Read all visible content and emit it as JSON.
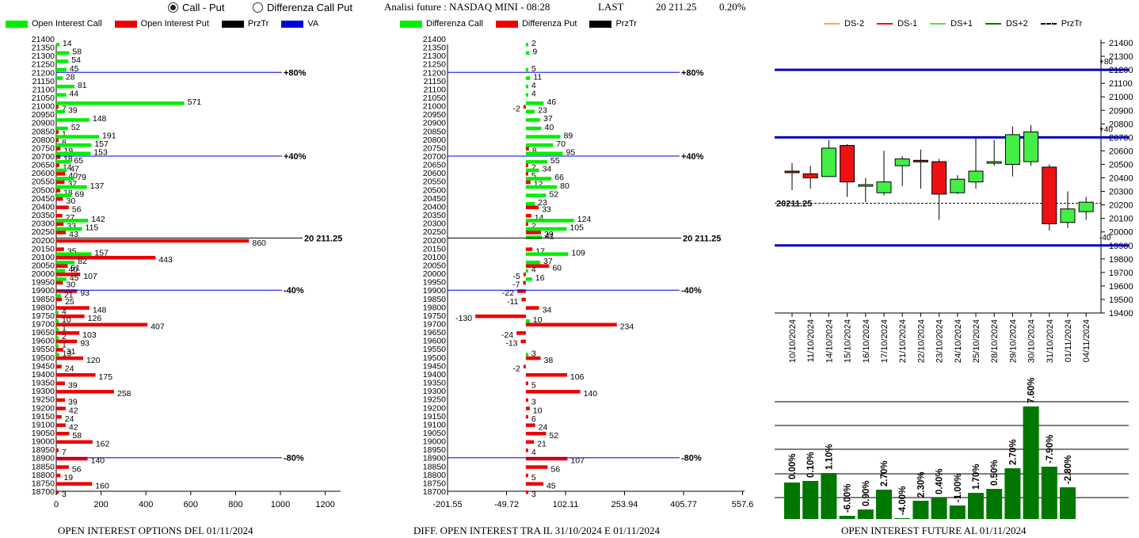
{
  "header": {
    "radio_call_put": "Call - Put",
    "radio_diff": "Differenza Call Put",
    "selected": "call_put",
    "title": "Analisi future : NASDAQ MINI - 08:28",
    "last_label": "LAST",
    "last_value": "20 211.25",
    "last_pct": "0.20%"
  },
  "footers": {
    "left": "OPEN INTEREST OPTIONS DEL 01/11/2024",
    "middle": "DIFF. OPEN INTEREST TRA IL 31/10/2024 E 01/11/2024",
    "right": "OPEN INTEREST FUTURE AL 01/11/2024"
  },
  "colors": {
    "call": "#00ee00",
    "put": "#ee0000",
    "va": "#0000dd",
    "przTr": "#000000",
    "navy": "#0000bb",
    "dark_green": "#007700",
    "light_green": "#44ee44",
    "red": "#ee1111"
  },
  "chart_data": [
    {
      "type": "bar",
      "orientation": "horizontal",
      "legend": [
        "Open Interest Call",
        "Open Interest Put",
        "PrzTr",
        "VA"
      ],
      "strikes": [
        21400,
        21350,
        21300,
        21250,
        21200,
        21150,
        21100,
        21050,
        21000,
        20950,
        20900,
        20850,
        20800,
        20750,
        20700,
        20650,
        20600,
        20550,
        20500,
        20450,
        20400,
        20350,
        20300,
        20250,
        20200,
        20150,
        20100,
        20050,
        20000,
        19950,
        19900,
        19850,
        19800,
        19750,
        19700,
        19650,
        19600,
        19550,
        19500,
        19450,
        19400,
        19350,
        19300,
        19250,
        19200,
        19150,
        19100,
        19050,
        19000,
        18950,
        18900,
        18850,
        18800,
        18750,
        18700
      ],
      "call": [
        0,
        14,
        58,
        54,
        45,
        28,
        81,
        44,
        571,
        39,
        148,
        52,
        191,
        157,
        153,
        65,
        47,
        79,
        137,
        69,
        0,
        0,
        142,
        115,
        0,
        0,
        157,
        82,
        40,
        45,
        0,
        21,
        0,
        4,
        10,
        1,
        2,
        1,
        13,
        0,
        0,
        0,
        0,
        0,
        0,
        0,
        0,
        0,
        0,
        0,
        0,
        0,
        0,
        0,
        0
      ],
      "put": [
        0,
        0,
        0,
        0,
        0,
        0,
        0,
        0,
        7,
        0,
        0,
        1,
        8,
        19,
        18,
        14,
        40,
        37,
        18,
        30,
        56,
        27,
        33,
        43,
        860,
        35,
        443,
        51,
        107,
        30,
        93,
        25,
        148,
        126,
        407,
        103,
        93,
        31,
        120,
        24,
        175,
        39,
        258,
        39,
        42,
        24,
        42,
        58,
        162,
        7,
        140,
        56,
        19,
        160,
        3
      ],
      "x_ticks": [
        0,
        200,
        400,
        600,
        800,
        1000,
        1200
      ],
      "xlim": [
        0,
        1200
      ],
      "price_line": {
        "value": 20211.25,
        "label": "20 211.25"
      },
      "va_lines": [
        {
          "strike": 21200,
          "label": "+80%"
        },
        {
          "strike": 20700,
          "label": "+40%"
        },
        {
          "strike": 19900,
          "label": "-40%"
        },
        {
          "strike": 18900,
          "label": "-80%"
        }
      ]
    },
    {
      "type": "bar",
      "orientation": "horizontal",
      "legend": [
        "Differenza Call",
        "Differenza Put",
        "PrzTr"
      ],
      "strikes": [
        21400,
        21350,
        21300,
        21250,
        21200,
        21150,
        21100,
        21050,
        21000,
        20950,
        20900,
        20850,
        20800,
        20750,
        20700,
        20650,
        20600,
        20550,
        20500,
        20450,
        20400,
        20350,
        20300,
        20250,
        20200,
        20150,
        20100,
        20050,
        20000,
        19950,
        19900,
        19850,
        19800,
        19750,
        19700,
        19650,
        19600,
        19550,
        19500,
        19450,
        19400,
        19350,
        19300,
        19250,
        19200,
        19150,
        19100,
        19050,
        19000,
        18950,
        18900,
        18850,
        18800,
        18750,
        18700
      ],
      "call": [
        0,
        2,
        9,
        0,
        5,
        11,
        4,
        4,
        46,
        23,
        37,
        40,
        89,
        70,
        95,
        55,
        34,
        66,
        80,
        52,
        23,
        0,
        124,
        105,
        41,
        0,
        109,
        37,
        4,
        16,
        0,
        0,
        0,
        0,
        10,
        0,
        0,
        0,
        3,
        0,
        0,
        0,
        0,
        0,
        0,
        0,
        0,
        0,
        0,
        0,
        0,
        0,
        0,
        0,
        0
      ],
      "put": [
        0,
        0,
        0,
        0,
        0,
        0,
        0,
        0,
        -2,
        0,
        0,
        0,
        0,
        8,
        0,
        2,
        5,
        12,
        0,
        0,
        33,
        14,
        2,
        39,
        0,
        17,
        0,
        60,
        -5,
        -7,
        -22,
        -11,
        34,
        -130,
        234,
        -24,
        -13,
        0,
        38,
        -2,
        106,
        5,
        140,
        3,
        10,
        6,
        24,
        52,
        21,
        4,
        107,
        56,
        5,
        45,
        3
      ],
      "x_ticks": [
        -201.55,
        -49.72,
        102.11,
        253.94,
        405.77,
        557.6
      ],
      "xlim": [
        -201.55,
        557.6
      ],
      "price_line": {
        "value": 20211.25,
        "label": "20 211.25"
      },
      "va_lines": [
        {
          "strike": 21200,
          "label": "+80%"
        },
        {
          "strike": 20700,
          "label": "+40%"
        },
        {
          "strike": 19900,
          "label": "-40%"
        },
        {
          "strike": 18900,
          "label": "-80%"
        }
      ]
    },
    {
      "type": "candlestick",
      "legend": [
        "DS-2",
        "DS-1",
        "DS+1",
        "DS+2",
        "PrzTr"
      ],
      "dates": [
        "10/10/2024",
        "11/10/2024",
        "14/10/2024",
        "15/10/2024",
        "16/10/2024",
        "17/10/2024",
        "21/10/2024",
        "22/10/2024",
        "23/10/2024",
        "24/10/2024",
        "25/10/2024",
        "28/10/2024",
        "29/10/2024",
        "30/10/2024",
        "31/10/2024",
        "01/11/2024",
        "04/11/2024"
      ],
      "open": [
        20450,
        20430,
        20410,
        20640,
        20350,
        20290,
        20490,
        20530,
        20520,
        20290,
        20370,
        20510,
        20500,
        20520,
        20480,
        20070,
        20150
      ],
      "close": [
        20440,
        20400,
        20620,
        20370,
        20350,
        20370,
        20540,
        20520,
        20280,
        20390,
        20450,
        20520,
        20720,
        20740,
        20060,
        20170,
        20220
      ],
      "high": [
        20510,
        20490,
        20680,
        20650,
        20400,
        20600,
        20560,
        20610,
        20540,
        20420,
        20710,
        20680,
        20780,
        20790,
        20500,
        20300,
        20260
      ],
      "low": [
        20310,
        20320,
        20410,
        20260,
        20220,
        20270,
        20340,
        20320,
        20090,
        20280,
        20320,
        20490,
        20410,
        20490,
        20010,
        20030,
        20090
      ],
      "y_ticks": [
        19400,
        19500,
        19600,
        19700,
        19800,
        19900,
        20000,
        20100,
        20200,
        20300,
        20400,
        20500,
        20600,
        20700,
        20800,
        20900,
        21000,
        21100,
        21200,
        21300,
        21400
      ],
      "ylim": [
        19400,
        21400
      ],
      "levels": [
        {
          "value": 21200,
          "label": "+80"
        },
        {
          "value": 20700,
          "label": "+40"
        },
        {
          "value": 19900,
          "label": "-40"
        }
      ],
      "price_line": {
        "value": 20211.25,
        "label": "20211.25"
      }
    },
    {
      "type": "bar",
      "labels": [
        "0.00%",
        "0.10%",
        "1.10%",
        "-6.00%",
        "0.90%",
        "2.70%",
        "-4.00%",
        "2.30%",
        "0.40%",
        "-1.00%",
        "1.70%",
        "0.50%",
        "2.70%",
        "7.60%",
        "-7.90%",
        "-2.80%"
      ],
      "values": [
        0.0,
        0.1,
        1.1,
        -6.0,
        0.9,
        2.7,
        -4.0,
        2.3,
        0.4,
        -1.0,
        1.7,
        0.5,
        2.7,
        7.6,
        -7.9,
        -2.8
      ],
      "heights": [
        46,
        48,
        58,
        4,
        12,
        37,
        1,
        23,
        27,
        17,
        33,
        38,
        64,
        142,
        66,
        40
      ]
    }
  ]
}
